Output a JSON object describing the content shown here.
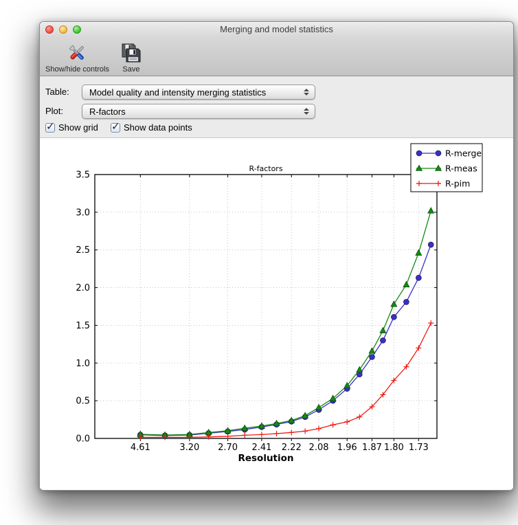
{
  "window": {
    "title": "Merging and model statistics"
  },
  "toolbar": {
    "items": [
      {
        "label": "Show/hide controls",
        "icon": "tools-icon"
      },
      {
        "label": "Save",
        "icon": "save-icon"
      }
    ]
  },
  "controls": {
    "table": {
      "label": "Table:",
      "value": "Model quality and intensity merging statistics"
    },
    "plot": {
      "label": "Plot:",
      "value": "R-factors"
    },
    "show_grid": {
      "label": "Show grid",
      "checked": true
    },
    "show_data_points": {
      "label": "Show data points",
      "checked": true
    }
  },
  "icons": {
    "checkmark": "✓"
  },
  "chart_data": {
    "type": "line",
    "title": "R-factors",
    "xlabel": "Resolution",
    "ylabel": "",
    "x_axis_note": "resolution shell d-spacings in angstroms, positions linear in 1/d^2",
    "xlim": [
      0,
      0.353
    ],
    "ylim": [
      0,
      3.5
    ],
    "yticks": [
      0.0,
      0.5,
      1.0,
      1.5,
      2.0,
      2.5,
      3.0,
      3.5
    ],
    "ytick_labels": [
      "0.0",
      "0.5",
      "1.0",
      "1.5",
      "2.0",
      "2.5",
      "3.0",
      "3.5"
    ],
    "xticks": [
      {
        "label": "4.61",
        "x": 0.047
      },
      {
        "label": "3.20",
        "x": 0.0977
      },
      {
        "label": "2.70",
        "x": 0.1372
      },
      {
        "label": "2.41",
        "x": 0.1722
      },
      {
        "label": "2.22",
        "x": 0.2029
      },
      {
        "label": "2.08",
        "x": 0.2311
      },
      {
        "label": "1.96",
        "x": 0.2603
      },
      {
        "label": "1.87",
        "x": 0.286
      },
      {
        "label": "1.80",
        "x": 0.3086
      },
      {
        "label": "1.73",
        "x": 0.3341
      }
    ],
    "x": [
      0.047,
      0.0724,
      0.0977,
      0.1174,
      0.1372,
      0.1547,
      0.1722,
      0.1875,
      0.2029,
      0.217,
      0.2311,
      0.2457,
      0.2603,
      0.2731,
      0.286,
      0.2973,
      0.3086,
      0.3214,
      0.3341,
      0.3468
    ],
    "grid": true,
    "grid_color": "#bdbdbd",
    "show_markers": true,
    "legend_position": "upper right",
    "series": [
      {
        "name": "R-merge",
        "color": "#3b2fc4",
        "marker": "circle",
        "values": [
          0.048,
          0.038,
          0.045,
          0.068,
          0.092,
          0.118,
          0.152,
          0.185,
          0.225,
          0.285,
          0.38,
          0.5,
          0.66,
          0.85,
          1.08,
          1.3,
          1.61,
          1.81,
          2.13,
          2.57
        ]
      },
      {
        "name": "R-meas",
        "color": "#128a12",
        "marker": "triangle",
        "values": [
          0.055,
          0.045,
          0.052,
          0.078,
          0.102,
          0.135,
          0.165,
          0.198,
          0.238,
          0.302,
          0.41,
          0.53,
          0.7,
          0.91,
          1.16,
          1.43,
          1.78,
          2.04,
          2.46,
          3.02
        ]
      },
      {
        "name": "R-pim",
        "color": "#f01810",
        "marker": "plus",
        "values": [
          0.015,
          0.015,
          0.015,
          0.02,
          0.028,
          0.042,
          0.051,
          0.064,
          0.079,
          0.097,
          0.13,
          0.18,
          0.22,
          0.285,
          0.42,
          0.58,
          0.77,
          0.95,
          1.2,
          1.53
        ]
      }
    ]
  }
}
